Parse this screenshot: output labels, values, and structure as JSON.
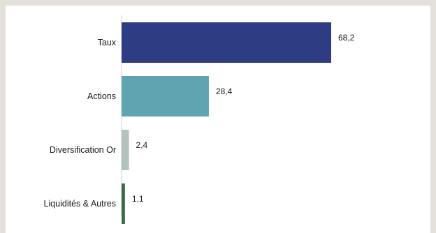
{
  "chart_data": {
    "type": "bar",
    "orientation": "horizontal",
    "categories": [
      "Taux",
      "Actions",
      "Diversification Or",
      "Liquidités & Autres"
    ],
    "values": [
      68.2,
      28.4,
      2.4,
      1.1
    ],
    "value_labels": [
      "68,2",
      "28,4",
      "2,4",
      "1,1"
    ],
    "colors": [
      "#2e3d83",
      "#5fa4b0",
      "#b3c2bd",
      "#3a6a48"
    ],
    "title": "",
    "xlabel": "",
    "ylabel": "",
    "xlim": [
      0,
      68.2
    ],
    "grid": false,
    "legend": "none"
  }
}
